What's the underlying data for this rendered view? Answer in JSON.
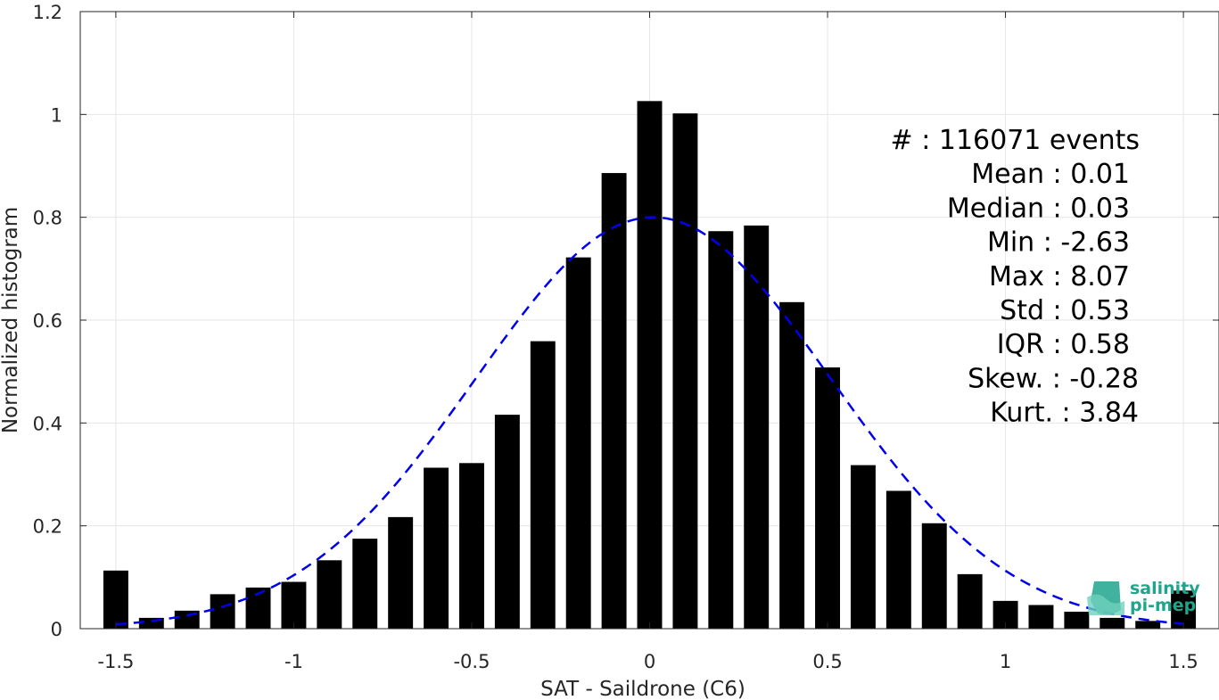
{
  "chart_data": {
    "type": "bar",
    "xlabel": "SAT - Saildrone (C6)",
    "ylabel": "Normalized histogram",
    "xlim": [
      -1.6,
      1.6
    ],
    "ylim": [
      0,
      1.2
    ],
    "xticks": [
      "-1.5",
      "-1",
      "-0.5",
      "0",
      "0.5",
      "1",
      "1.5"
    ],
    "yticks": [
      "0",
      "0.2",
      "0.4",
      "0.6",
      "0.8",
      "1",
      "1.2"
    ],
    "grid": true,
    "bin_centers": [
      -1.5,
      -1.4,
      -1.3,
      -1.2,
      -1.1,
      -1.0,
      -0.9,
      -0.8,
      -0.7,
      -0.6,
      -0.5,
      -0.4,
      -0.3,
      -0.2,
      -0.1,
      0.0,
      0.1,
      0.2,
      0.3,
      0.4,
      0.5,
      0.6,
      0.7,
      0.8,
      0.9,
      1.0,
      1.1,
      1.2,
      1.3,
      1.4,
      1.5
    ],
    "bar_width": 0.07,
    "values": [
      0.113,
      0.021,
      0.035,
      0.067,
      0.08,
      0.091,
      0.133,
      0.175,
      0.217,
      0.313,
      0.322,
      0.416,
      0.559,
      0.722,
      0.886,
      1.026,
      1.002,
      0.773,
      0.784,
      0.635,
      0.508,
      0.318,
      0.268,
      0.205,
      0.106,
      0.054,
      0.046,
      0.033,
      0.021,
      0.015,
      0.074
    ],
    "fit": {
      "type": "gaussian",
      "mean": 0.01,
      "std": 0.5,
      "peak": 0.8,
      "style": "dashed",
      "color": "#0000ee"
    },
    "bar_color": "#000000"
  },
  "stats": [
    {
      "label": "#  : 116071 events"
    },
    {
      "label": "Mean : 0.01"
    },
    {
      "label": "Median : 0.03"
    },
    {
      "label": "Min : -2.63"
    },
    {
      "label": "Max : 8.07"
    },
    {
      "label": "Std : 0.53"
    },
    {
      "label": "IQR : 0.58"
    },
    {
      "label": "Skew. : -0.28"
    },
    {
      "label": "Kurt. : 3.84"
    }
  ],
  "logo": {
    "line1": "salinity",
    "line2": "pi-mep",
    "color": "#1fa58c"
  }
}
